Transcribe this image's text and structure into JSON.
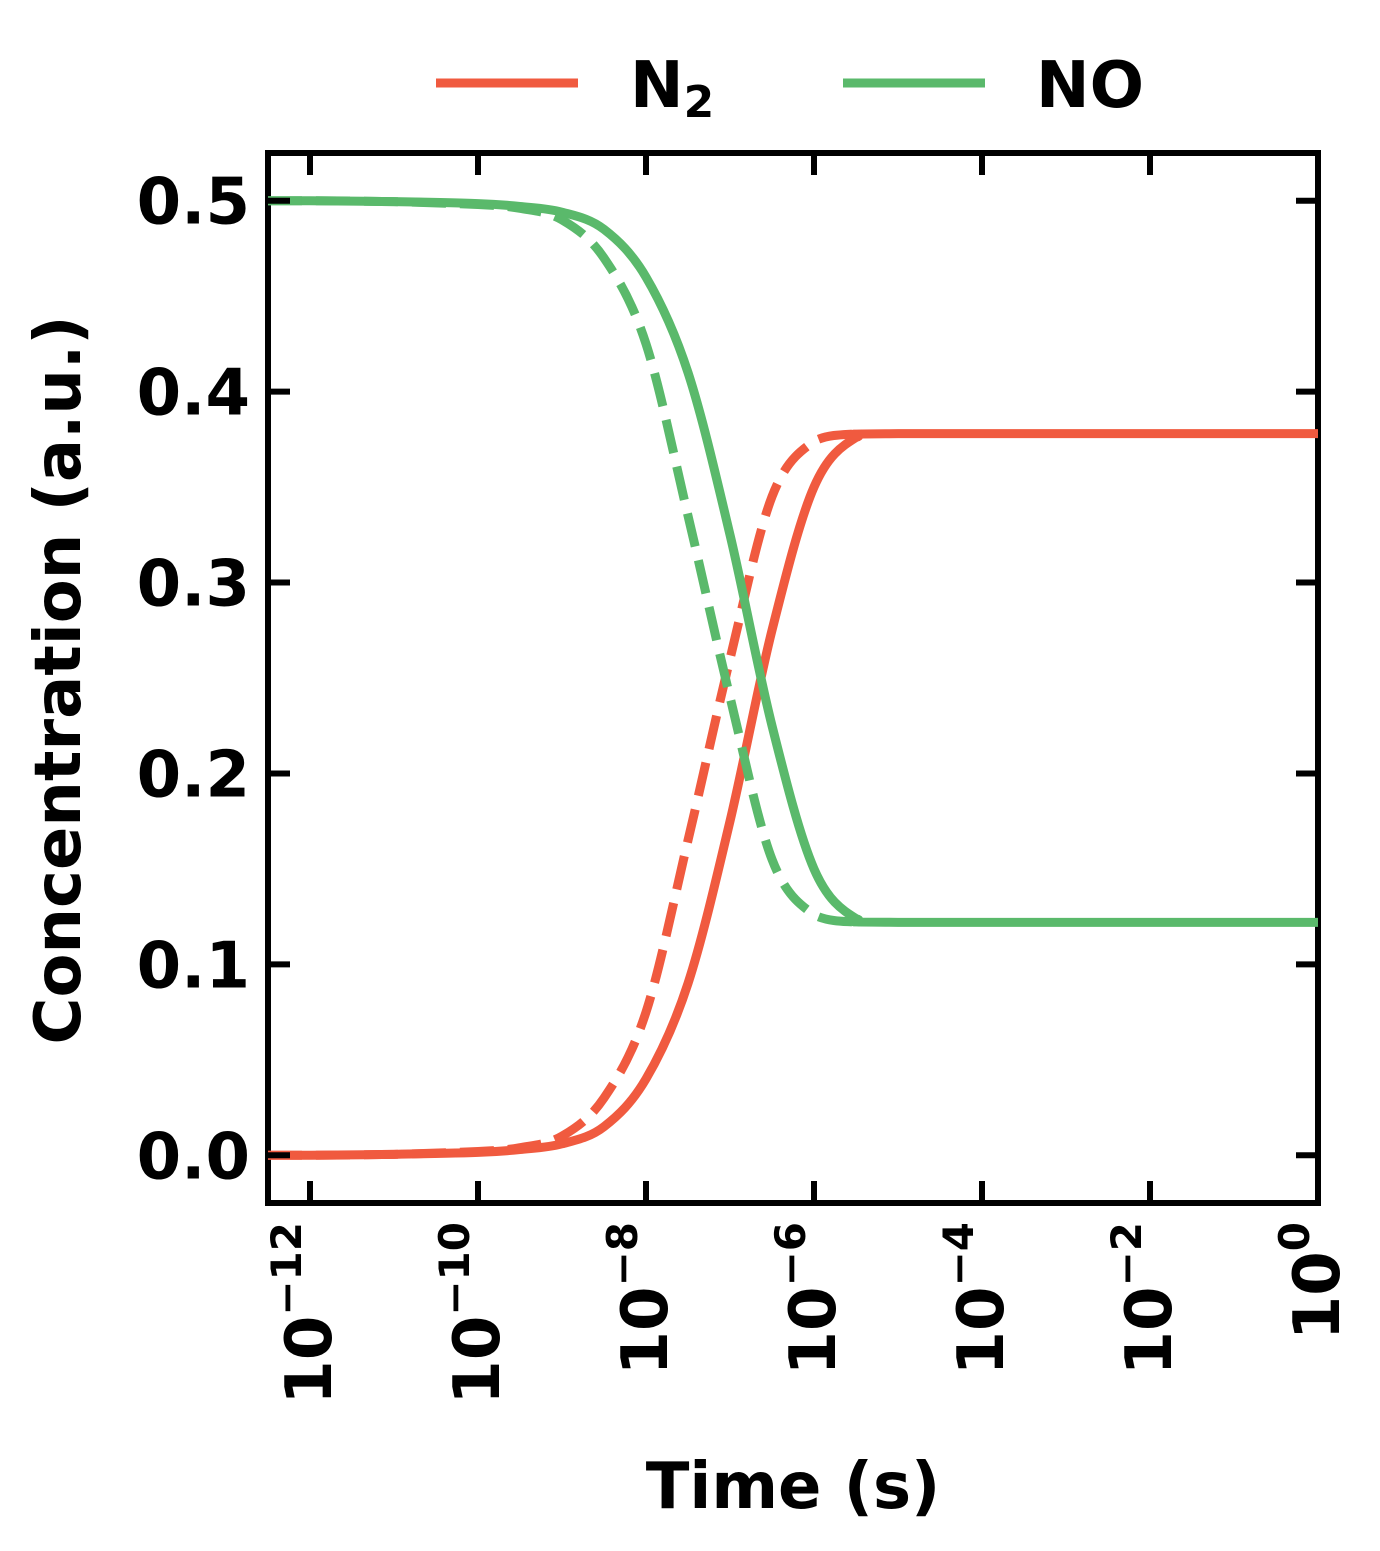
{
  "chart_data": {
    "type": "line",
    "xlabel": "Time (s)",
    "ylabel": "Concentration (a.u.)",
    "xscale": "log",
    "xlim": [
      3.162e-13,
      1
    ],
    "ylim": [
      -0.025,
      0.525
    ],
    "x_ticks": [
      {
        "value": 1e-12,
        "base": "10",
        "exp": "−12"
      },
      {
        "value": 1e-10,
        "base": "10",
        "exp": "−10"
      },
      {
        "value": 1e-08,
        "base": "10",
        "exp": "−8"
      },
      {
        "value": 1e-06,
        "base": "10",
        "exp": "−6"
      },
      {
        "value": 0.0001,
        "base": "10",
        "exp": "−4"
      },
      {
        "value": 0.01,
        "base": "10",
        "exp": "−2"
      },
      {
        "value": 1,
        "base": "10",
        "exp": "0"
      }
    ],
    "y_ticks": [
      {
        "value": 0.0,
        "label": "0.0"
      },
      {
        "value": 0.1,
        "label": "0.1"
      },
      {
        "value": 0.2,
        "label": "0.2"
      },
      {
        "value": 0.3,
        "label": "0.3"
      },
      {
        "value": 0.4,
        "label": "0.4"
      },
      {
        "value": 0.5,
        "label": "0.5"
      }
    ],
    "grid": false,
    "legend": {
      "placement": "top-center",
      "entries": [
        {
          "series": "N2",
          "main": "N",
          "sub": "2",
          "color": "#f05a3f"
        },
        {
          "series": "NO",
          "main": "NO",
          "sub": "",
          "color": "#5ab96b"
        }
      ]
    },
    "series": [
      {
        "name": "N2",
        "color": "#f05a3f",
        "style": "solid",
        "points": [
          [
            3.162e-13,
            0.0
          ],
          [
            1e-12,
            0.0
          ],
          [
            1e-11,
            0.0005
          ],
          [
            1e-10,
            0.0015
          ],
          [
            3.162e-10,
            0.003
          ],
          [
            1e-09,
            0.006
          ],
          [
            3.162e-09,
            0.015
          ],
          [
            1e-08,
            0.04
          ],
          [
            3.162e-08,
            0.09
          ],
          [
            1e-07,
            0.175
          ],
          [
            3.162e-07,
            0.275
          ],
          [
            1e-06,
            0.35
          ],
          [
            3.162e-06,
            0.376
          ],
          [
            1e-05,
            0.378
          ],
          [
            1,
            0.378
          ]
        ]
      },
      {
        "name": "N2",
        "color": "#f05a3f",
        "style": "dashed",
        "points": [
          [
            3.162e-13,
            0.0
          ],
          [
            1e-12,
            0.0
          ],
          [
            1e-11,
            0.0005
          ],
          [
            1e-10,
            0.002
          ],
          [
            3.162e-10,
            0.004
          ],
          [
            1e-09,
            0.01
          ],
          [
            3.162e-09,
            0.03
          ],
          [
            1e-08,
            0.075
          ],
          [
            3.162e-08,
            0.165
          ],
          [
            1e-07,
            0.26
          ],
          [
            3.162e-07,
            0.345
          ],
          [
            1e-06,
            0.374
          ],
          [
            3.162e-06,
            0.378
          ]
        ]
      },
      {
        "name": "NO",
        "color": "#5ab96b",
        "style": "solid",
        "points": [
          [
            3.162e-13,
            0.5
          ],
          [
            1e-12,
            0.5
          ],
          [
            1e-11,
            0.4995
          ],
          [
            1e-10,
            0.4985
          ],
          [
            3.162e-10,
            0.497
          ],
          [
            1e-09,
            0.494
          ],
          [
            3.162e-09,
            0.485
          ],
          [
            1e-08,
            0.46
          ],
          [
            3.162e-08,
            0.41
          ],
          [
            1e-07,
            0.325
          ],
          [
            3.162e-07,
            0.225
          ],
          [
            1e-06,
            0.15
          ],
          [
            3.162e-06,
            0.124
          ],
          [
            1e-05,
            0.122
          ],
          [
            1,
            0.122
          ]
        ]
      },
      {
        "name": "NO",
        "color": "#5ab96b",
        "style": "dashed",
        "points": [
          [
            3.162e-13,
            0.5
          ],
          [
            1e-12,
            0.5
          ],
          [
            1e-11,
            0.4995
          ],
          [
            1e-10,
            0.498
          ],
          [
            3.162e-10,
            0.496
          ],
          [
            1e-09,
            0.49
          ],
          [
            3.162e-09,
            0.47
          ],
          [
            1e-08,
            0.425
          ],
          [
            3.162e-08,
            0.335
          ],
          [
            1e-07,
            0.24
          ],
          [
            3.162e-07,
            0.155
          ],
          [
            1e-06,
            0.126
          ],
          [
            3.162e-06,
            0.122
          ]
        ]
      }
    ]
  }
}
